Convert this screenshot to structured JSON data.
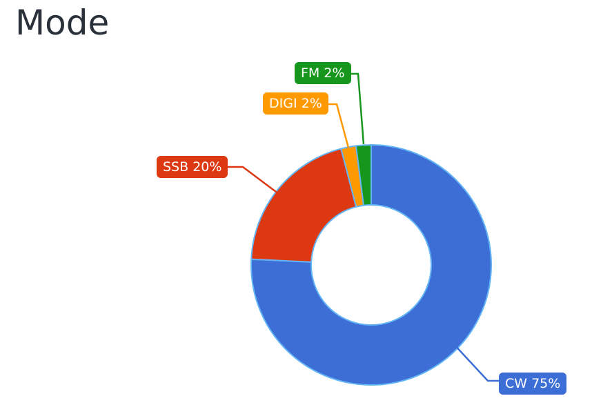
{
  "page": {
    "title": "Mode"
  },
  "chart_data": {
    "type": "pie",
    "subtype": "donut",
    "title": "Mode",
    "legend_position": "callout-labels",
    "hole_ratio": 0.5,
    "stroke_color": "#64b5f6",
    "slices": [
      {
        "label": "CW",
        "value": 75,
        "unit": "%",
        "color": "#3c6ed5",
        "label_text": "CW 75%"
      },
      {
        "label": "SSB",
        "value": 20,
        "unit": "%",
        "color": "#dc3912",
        "label_text": "SSB 20%"
      },
      {
        "label": "DIGI",
        "value": 2,
        "unit": "%",
        "color": "#ff9900",
        "label_text": "DIGI 2%"
      },
      {
        "label": "FM",
        "value": 2,
        "unit": "%",
        "color": "#16961c",
        "label_text": "FM 2%"
      }
    ]
  }
}
